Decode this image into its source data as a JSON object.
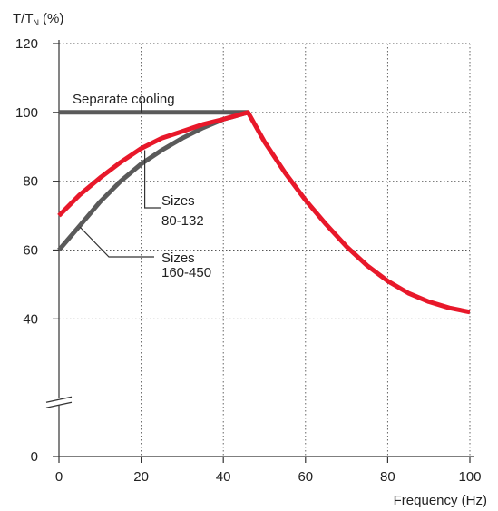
{
  "chart_data": {
    "type": "line",
    "y_axis_title": "T/T",
    "y_axis_title_sub": "N",
    "y_axis_title_unit": "(%)",
    "x_axis_title": "Frequency (Hz)",
    "xlim": [
      0,
      100
    ],
    "ylim": [
      0,
      120
    ],
    "x_ticks": [
      0,
      20,
      40,
      60,
      80,
      100
    ],
    "y_ticks": [
      0,
      40,
      60,
      80,
      100,
      120
    ],
    "y_axis_break": true,
    "grid": "dotted",
    "series": [
      {
        "label": "Separate cooling",
        "color": "#5a5a5a",
        "points": [
          [
            0,
            100
          ],
          [
            46,
            100
          ]
        ]
      },
      {
        "label": "Sizes 160-450",
        "color": "#5a5a5a",
        "points": [
          [
            0,
            60
          ],
          [
            5,
            67
          ],
          [
            10,
            74
          ],
          [
            15,
            80
          ],
          [
            20,
            85
          ],
          [
            25,
            89
          ],
          [
            30,
            92.5
          ],
          [
            35,
            95.5
          ],
          [
            40,
            98
          ],
          [
            46,
            100
          ]
        ]
      },
      {
        "label": "Sizes 80-132",
        "color": "#e8182a",
        "points": [
          [
            0,
            70
          ],
          [
            5,
            76
          ],
          [
            10,
            81
          ],
          [
            15,
            85.5
          ],
          [
            20,
            89.5
          ],
          [
            25,
            92.5
          ],
          [
            30,
            94.5
          ],
          [
            35,
            96.5
          ],
          [
            40,
            98
          ],
          [
            46,
            100
          ],
          [
            50,
            91.5
          ],
          [
            55,
            82.5
          ],
          [
            60,
            74.5
          ],
          [
            65,
            67.5
          ],
          [
            70,
            61
          ],
          [
            75,
            55.5
          ],
          [
            80,
            51
          ],
          [
            85,
            47.5
          ],
          [
            90,
            45
          ],
          [
            95,
            43.2
          ],
          [
            100,
            42
          ]
        ]
      }
    ],
    "annotations": [
      {
        "text": "Separate cooling",
        "series": 0,
        "anchor": [
          20,
          100
        ]
      },
      {
        "lines": [
          "Sizes",
          "80-132"
        ],
        "series": 2,
        "anchor": [
          20,
          89
        ]
      },
      {
        "lines": [
          "Sizes",
          "160-450"
        ],
        "series": 1,
        "anchor": [
          11,
          76
        ]
      }
    ]
  }
}
